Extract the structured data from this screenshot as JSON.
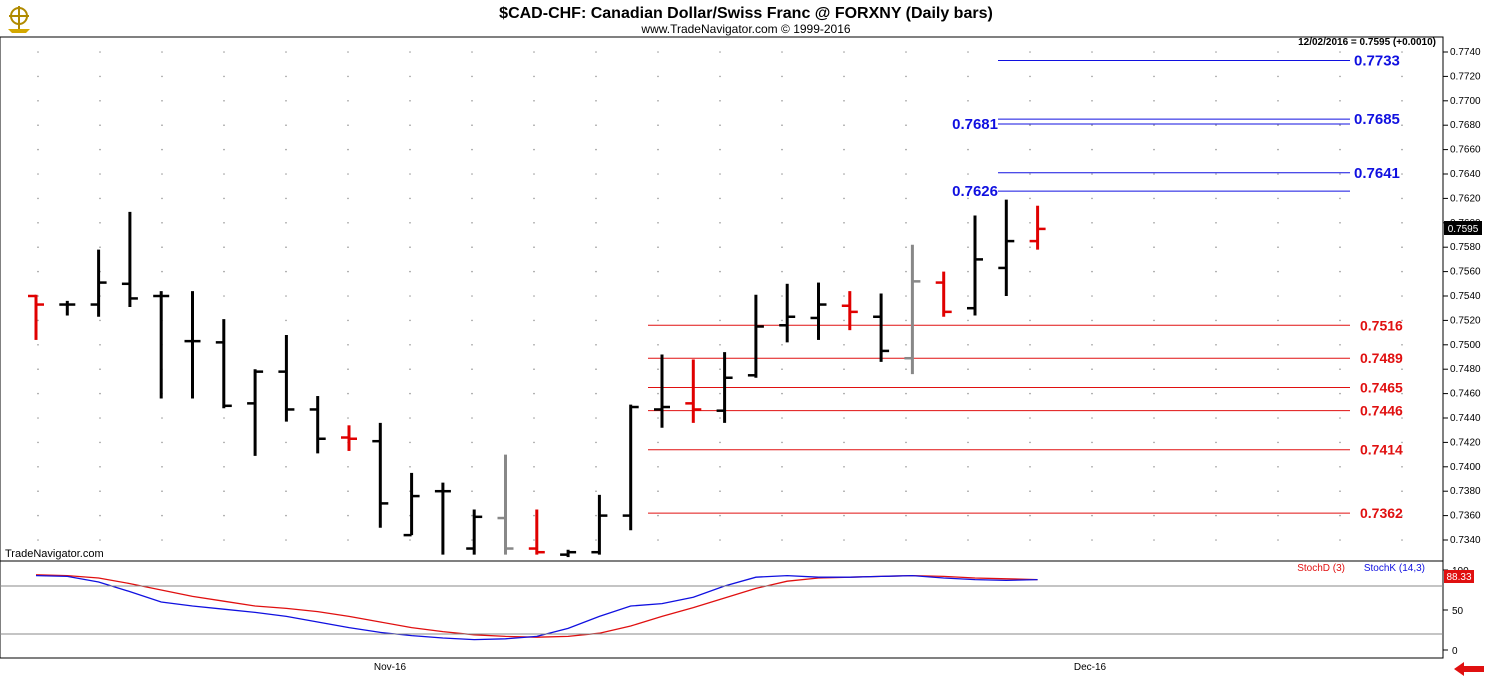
{
  "header": {
    "title": "$CAD-CHF:  Canadian Dollar/Swiss Franc @ FORXNY  (Daily bars)",
    "copyright": "www.TradeNavigator.com © 1999-2016",
    "last_quote": "12/02/2016 = 0.7595 (+0.0010)",
    "watermark": "TradeNavigator.com",
    "logo_icon": "ship-wheel-icon",
    "back_icon": "red-left-arrow-icon"
  },
  "colors": {
    "up_bar": "#000000",
    "down_bar": "#e00000",
    "neutral_bar": "#888888",
    "resistance": "#1010e0",
    "support": "#e01010",
    "stochD": "#e01010",
    "stochK": "#1010e0"
  },
  "chart_data": [
    {
      "type": "ohlc",
      "title": "$CAD-CHF:  Canadian Dollar/Swiss Franc @ FORXNY  (Daily bars)",
      "ylim": [
        0.7325,
        0.7755
      ],
      "y_ticks": [
        "0.7340",
        "0.7360",
        "0.7380",
        "0.7400",
        "0.7420",
        "0.7440",
        "0.7460",
        "0.7480",
        "0.7500",
        "0.7520",
        "0.7540",
        "0.7560",
        "0.7580",
        "0.7600",
        "0.7620",
        "0.7640",
        "0.7660",
        "0.7680",
        "0.7700",
        "0.7720",
        "0.7740"
      ],
      "x_labels": [
        "Nov-16",
        "Dec-16"
      ],
      "last_price_label": "0.7595",
      "bars": [
        {
          "o": 0.754,
          "h": 0.7541,
          "l": 0.7504,
          "c": 0.7533,
          "col": "red"
        },
        {
          "o": 0.7533,
          "h": 0.7536,
          "l": 0.7524,
          "c": 0.7533,
          "col": "black"
        },
        {
          "o": 0.7533,
          "h": 0.7578,
          "l": 0.7523,
          "c": 0.7551,
          "col": "black"
        },
        {
          "o": 0.755,
          "h": 0.7609,
          "l": 0.7531,
          "c": 0.7538,
          "col": "black"
        },
        {
          "o": 0.754,
          "h": 0.7544,
          "l": 0.7456,
          "c": 0.754,
          "col": "black"
        },
        {
          "o": 0.7503,
          "h": 0.7544,
          "l": 0.7456,
          "c": 0.7503,
          "col": "black"
        },
        {
          "o": 0.7502,
          "h": 0.7521,
          "l": 0.7448,
          "c": 0.745,
          "col": "black"
        },
        {
          "o": 0.7452,
          "h": 0.748,
          "l": 0.7409,
          "c": 0.7478,
          "col": "black"
        },
        {
          "o": 0.7478,
          "h": 0.7508,
          "l": 0.7437,
          "c": 0.7447,
          "col": "black"
        },
        {
          "o": 0.7447,
          "h": 0.7458,
          "l": 0.7411,
          "c": 0.7423,
          "col": "black"
        },
        {
          "o": 0.7424,
          "h": 0.7434,
          "l": 0.7413,
          "c": 0.7423,
          "col": "red"
        },
        {
          "o": 0.7421,
          "h": 0.7436,
          "l": 0.735,
          "c": 0.737,
          "col": "black"
        },
        {
          "o": 0.7344,
          "h": 0.7395,
          "l": 0.7344,
          "c": 0.7376,
          "col": "black"
        },
        {
          "o": 0.738,
          "h": 0.7387,
          "l": 0.7328,
          "c": 0.738,
          "col": "black"
        },
        {
          "o": 0.7333,
          "h": 0.7365,
          "l": 0.7328,
          "c": 0.7359,
          "col": "black"
        },
        {
          "o": 0.7358,
          "h": 0.741,
          "l": 0.7328,
          "c": 0.7333,
          "col": "gray"
        },
        {
          "o": 0.7333,
          "h": 0.7365,
          "l": 0.7328,
          "c": 0.733,
          "col": "red"
        },
        {
          "o": 0.7328,
          "h": 0.7332,
          "l": 0.7326,
          "c": 0.733,
          "col": "black"
        },
        {
          "o": 0.733,
          "h": 0.7377,
          "l": 0.7328,
          "c": 0.736,
          "col": "black"
        },
        {
          "o": 0.736,
          "h": 0.7451,
          "l": 0.7348,
          "c": 0.7449,
          "col": "black"
        },
        {
          "o": 0.7447,
          "h": 0.7492,
          "l": 0.7432,
          "c": 0.7449,
          "col": "black"
        },
        {
          "o": 0.7452,
          "h": 0.7488,
          "l": 0.7436,
          "c": 0.7447,
          "col": "red"
        },
        {
          "o": 0.7446,
          "h": 0.7494,
          "l": 0.7436,
          "c": 0.7473,
          "col": "black"
        },
        {
          "o": 0.7475,
          "h": 0.7541,
          "l": 0.7473,
          "c": 0.7515,
          "col": "black"
        },
        {
          "o": 0.7516,
          "h": 0.755,
          "l": 0.7502,
          "c": 0.7523,
          "col": "black"
        },
        {
          "o": 0.7522,
          "h": 0.7551,
          "l": 0.7504,
          "c": 0.7533,
          "col": "black"
        },
        {
          "o": 0.7532,
          "h": 0.7544,
          "l": 0.7512,
          "c": 0.7527,
          "col": "red"
        },
        {
          "o": 0.7523,
          "h": 0.7542,
          "l": 0.7486,
          "c": 0.7495,
          "col": "black"
        },
        {
          "o": 0.7489,
          "h": 0.7582,
          "l": 0.7476,
          "c": 0.7552,
          "col": "gray"
        },
        {
          "o": 0.7551,
          "h": 0.756,
          "l": 0.7523,
          "c": 0.7527,
          "col": "red"
        },
        {
          "o": 0.753,
          "h": 0.7606,
          "l": 0.7524,
          "c": 0.757,
          "col": "black"
        },
        {
          "o": 0.7563,
          "h": 0.7619,
          "l": 0.754,
          "c": 0.7585,
          "col": "black"
        },
        {
          "o": 0.7585,
          "h": 0.7614,
          "l": 0.7578,
          "c": 0.7595,
          "col": "red"
        }
      ],
      "levels": [
        {
          "value": 0.7733,
          "label": "0.7733",
          "color": "blue",
          "side": "right",
          "x_from": "Nov 30",
          "x_to": "Dec 12"
        },
        {
          "value": 0.7685,
          "label": "0.7685",
          "color": "blue",
          "side": "right",
          "x_from": "Nov 30",
          "x_to": "Dec 12"
        },
        {
          "value": 0.7681,
          "label": "0.7681",
          "color": "blue",
          "side": "left",
          "x_from": "Nov 30",
          "x_to": "Dec 12"
        },
        {
          "value": 0.7641,
          "label": "0.7641",
          "color": "blue",
          "side": "right",
          "x_from": "Nov 30",
          "x_to": "Dec 12"
        },
        {
          "value": 0.7626,
          "label": "0.7626",
          "color": "blue",
          "side": "left",
          "x_from": "Nov 30",
          "x_to": "Dec 13"
        },
        {
          "value": 0.7516,
          "label": "0.7516",
          "color": "red",
          "side": "right",
          "x_from": "Nov 18",
          "x_to": "Dec 13"
        },
        {
          "value": 0.7489,
          "label": "0.7489",
          "color": "red",
          "side": "right",
          "x_from": "Nov 18",
          "x_to": "Dec 13"
        },
        {
          "value": 0.7465,
          "label": "0.7465",
          "color": "red",
          "side": "right",
          "x_from": "Nov 18",
          "x_to": "Dec 13"
        },
        {
          "value": 0.7446,
          "label": "0.7446",
          "color": "red",
          "side": "right",
          "x_from": "Nov 18",
          "x_to": "Dec 13"
        },
        {
          "value": 0.7414,
          "label": "0.7414",
          "color": "red",
          "side": "right",
          "x_from": "Nov 18",
          "x_to": "Dec 13"
        },
        {
          "value": 0.7362,
          "label": "0.7362",
          "color": "red",
          "side": "right",
          "x_from": "Nov 18",
          "x_to": "Dec 13"
        }
      ]
    },
    {
      "type": "line",
      "ylim": [
        0,
        100
      ],
      "y_ticks": [
        "100",
        "50",
        "0"
      ],
      "reference_lines": [
        80,
        20
      ],
      "legend": [
        "StochD (3)",
        "StochK (14,3)"
      ],
      "last_value_label": "88.33",
      "series": [
        {
          "name": "StochD (3)",
          "values": [
            94,
            93,
            90,
            83,
            75,
            67,
            61,
            55,
            52,
            48,
            42,
            35,
            28,
            23,
            19,
            17,
            16,
            17,
            21,
            30,
            42,
            53,
            65,
            77,
            86,
            90,
            91,
            92,
            93,
            92,
            90,
            89,
            88
          ]
        },
        {
          "name": "StochK (14,3)",
          "values": [
            93,
            92,
            85,
            73,
            60,
            55,
            51,
            47,
            42,
            35,
            28,
            22,
            18,
            15,
            13,
            14,
            17,
            27,
            42,
            55,
            58,
            66,
            80,
            91,
            93,
            91,
            91,
            92,
            93,
            90,
            88,
            87,
            88
          ]
        }
      ]
    }
  ]
}
